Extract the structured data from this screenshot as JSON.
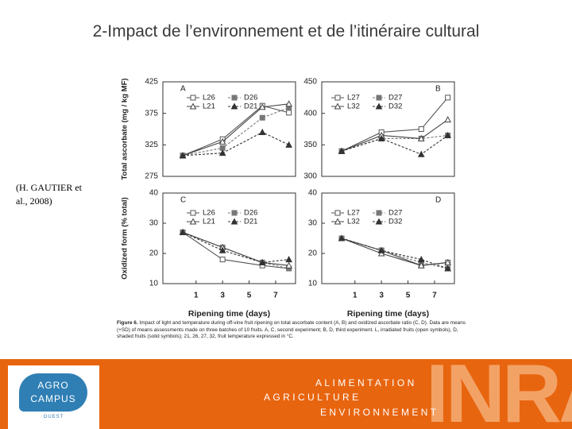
{
  "title": "2-Impact de l’environnement et de l’itinéraire cultural",
  "citation": "(H. GAUTIER et al., 2008)",
  "figure_caption": {
    "label": "Figure 6.",
    "text": "Impact of light and temperature during off-vine fruit ripening on total ascorbate content (A, B) and oxidized ascorbate ratio (C, D). Data are means (+SD) of means assessments made on three batches of 10 fruits. A, C, second experiment; B, D, third experiment. L, irradiated fruits (open symbols), D, shaded fruits (solid symbols); 21, 26, 27, 32, fruit temperature expressed in °C."
  },
  "footer": {
    "logo_top": "AGRO",
    "logo_bottom": "CAMPUS",
    "logo_sub": "OUEST",
    "line1": "ALIMENTATION",
    "line2": "AGRICULTURE",
    "line3": "ENVIRONNEMENT",
    "brand": "INRA"
  },
  "chart_data": [
    {
      "type": "line",
      "panel": "A",
      "ylabel": "Total ascorbate (mg / kg MF)",
      "x": [
        0,
        3,
        6,
        8
      ],
      "xlim": [
        -1.5,
        8.5
      ],
      "ylim": [
        275,
        425
      ],
      "yticks": [
        275,
        325,
        375,
        425
      ],
      "series": [
        {
          "name": "L26",
          "color": "#555555",
          "marker": "square",
          "filled": false,
          "values": [
            308,
            334,
            387,
            376
          ]
        },
        {
          "name": "D26",
          "color": "#777777",
          "marker": "square",
          "filled": true,
          "values": [
            308,
            320,
            368,
            384
          ]
        },
        {
          "name": "L21",
          "color": "#444444",
          "marker": "triangle",
          "filled": false,
          "values": [
            308,
            330,
            385,
            390
          ]
        },
        {
          "name": "D21",
          "color": "#333333",
          "marker": "triangle",
          "filled": true,
          "values": [
            308,
            312,
            345,
            325
          ]
        }
      ]
    },
    {
      "type": "line",
      "panel": "B",
      "x": [
        0,
        3,
        6,
        8
      ],
      "xlim": [
        -1.5,
        8.5
      ],
      "ylim": [
        300,
        450
      ],
      "yticks": [
        300,
        350,
        400,
        450
      ],
      "series": [
        {
          "name": "L27",
          "color": "#555555",
          "marker": "square",
          "filled": false,
          "values": [
            340,
            370,
            375,
            425
          ]
        },
        {
          "name": "D27",
          "color": "#777777",
          "marker": "square",
          "filled": true,
          "values": [
            340,
            360,
            360,
            365
          ]
        },
        {
          "name": "L32",
          "color": "#444444",
          "marker": "triangle",
          "filled": false,
          "values": [
            340,
            365,
            360,
            390
          ]
        },
        {
          "name": "D32",
          "color": "#333333",
          "marker": "triangle",
          "filled": true,
          "values": [
            340,
            360,
            335,
            365
          ]
        }
      ]
    },
    {
      "type": "line",
      "panel": "C",
      "ylabel": "Oxidized form (% total)",
      "xlabel": "Ripening time (days)",
      "x": [
        0,
        3,
        6,
        8
      ],
      "xlim": [
        -1.5,
        8.5
      ],
      "xticks": [
        1,
        3,
        5,
        7
      ],
      "ylim": [
        10,
        40
      ],
      "yticks": [
        10,
        20,
        30,
        40
      ],
      "series": [
        {
          "name": "L26",
          "color": "#555555",
          "marker": "square",
          "filled": false,
          "values": [
            27,
            18,
            16,
            15
          ]
        },
        {
          "name": "D26",
          "color": "#777777",
          "marker": "square",
          "filled": true,
          "values": [
            27,
            22,
            17,
            15
          ]
        },
        {
          "name": "L21",
          "color": "#444444",
          "marker": "triangle",
          "filled": false,
          "values": [
            27,
            22,
            17,
            16
          ]
        },
        {
          "name": "D21",
          "color": "#333333",
          "marker": "triangle",
          "filled": true,
          "values": [
            27,
            21,
            17,
            18
          ]
        }
      ]
    },
    {
      "type": "line",
      "panel": "D",
      "xlabel": "Ripening time (days)",
      "x": [
        0,
        3,
        6,
        8
      ],
      "xlim": [
        -1.5,
        8.5
      ],
      "xticks": [
        1,
        3,
        5,
        7
      ],
      "ylim": [
        10,
        40
      ],
      "yticks": [
        10,
        20,
        30,
        40
      ],
      "series": [
        {
          "name": "L27",
          "color": "#555555",
          "marker": "square",
          "filled": false,
          "values": [
            25,
            21,
            16,
            17
          ]
        },
        {
          "name": "D27",
          "color": "#777777",
          "marker": "square",
          "filled": true,
          "values": [
            25,
            21,
            17,
            15
          ]
        },
        {
          "name": "L32",
          "color": "#444444",
          "marker": "triangle",
          "filled": false,
          "values": [
            25,
            20,
            16,
            17
          ]
        },
        {
          "name": "D32",
          "color": "#333333",
          "marker": "triangle",
          "filled": true,
          "values": [
            25,
            21,
            18,
            15
          ]
        }
      ]
    }
  ]
}
